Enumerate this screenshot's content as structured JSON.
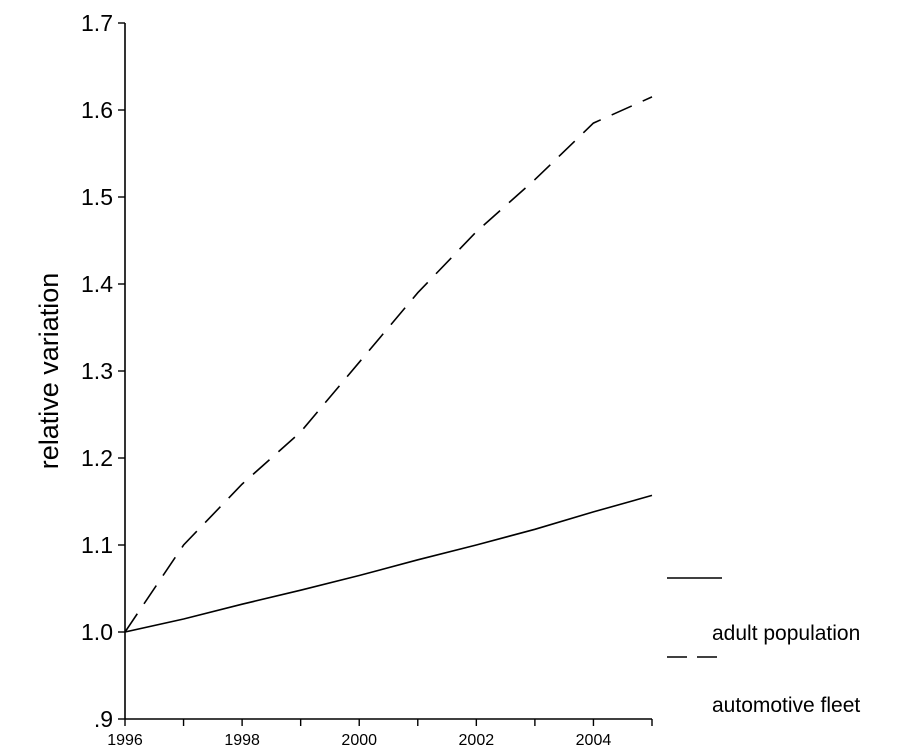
{
  "chart_data": {
    "type": "line",
    "title": "",
    "xlabel": "",
    "ylabel": "relative variation",
    "xlim": [
      1996,
      2005
    ],
    "ylim": [
      0.9,
      1.7
    ],
    "x_ticks": [
      1996,
      1997,
      1998,
      1999,
      2000,
      2001,
      2002,
      2003,
      2004,
      2005
    ],
    "x_tick_labels": [
      "1996",
      "",
      "1998",
      "",
      "2000",
      "",
      "2002",
      "",
      "2004",
      ""
    ],
    "y_ticks": [
      0.9,
      1.0,
      1.1,
      1.2,
      1.3,
      1.4,
      1.5,
      1.6,
      1.7
    ],
    "y_tick_labels": [
      ".9",
      "1.0",
      "1.1",
      "1.2",
      "1.3",
      "1.4",
      "1.5",
      "1.6",
      "1.7"
    ],
    "grid": false,
    "legend_position": "bottom-right",
    "x": [
      1996,
      1997,
      1998,
      1999,
      2000,
      2001,
      2002,
      2003,
      2004,
      2005
    ],
    "series": [
      {
        "name": "adult population",
        "style": "solid",
        "values": [
          1.0,
          1.015,
          1.032,
          1.048,
          1.065,
          1.083,
          1.1,
          1.118,
          1.138,
          1.157
        ]
      },
      {
        "name": "automotive fleet",
        "style": "dashed",
        "values": [
          1.0,
          1.1,
          1.17,
          1.23,
          1.31,
          1.39,
          1.46,
          1.52,
          1.585,
          1.615
        ]
      }
    ]
  }
}
